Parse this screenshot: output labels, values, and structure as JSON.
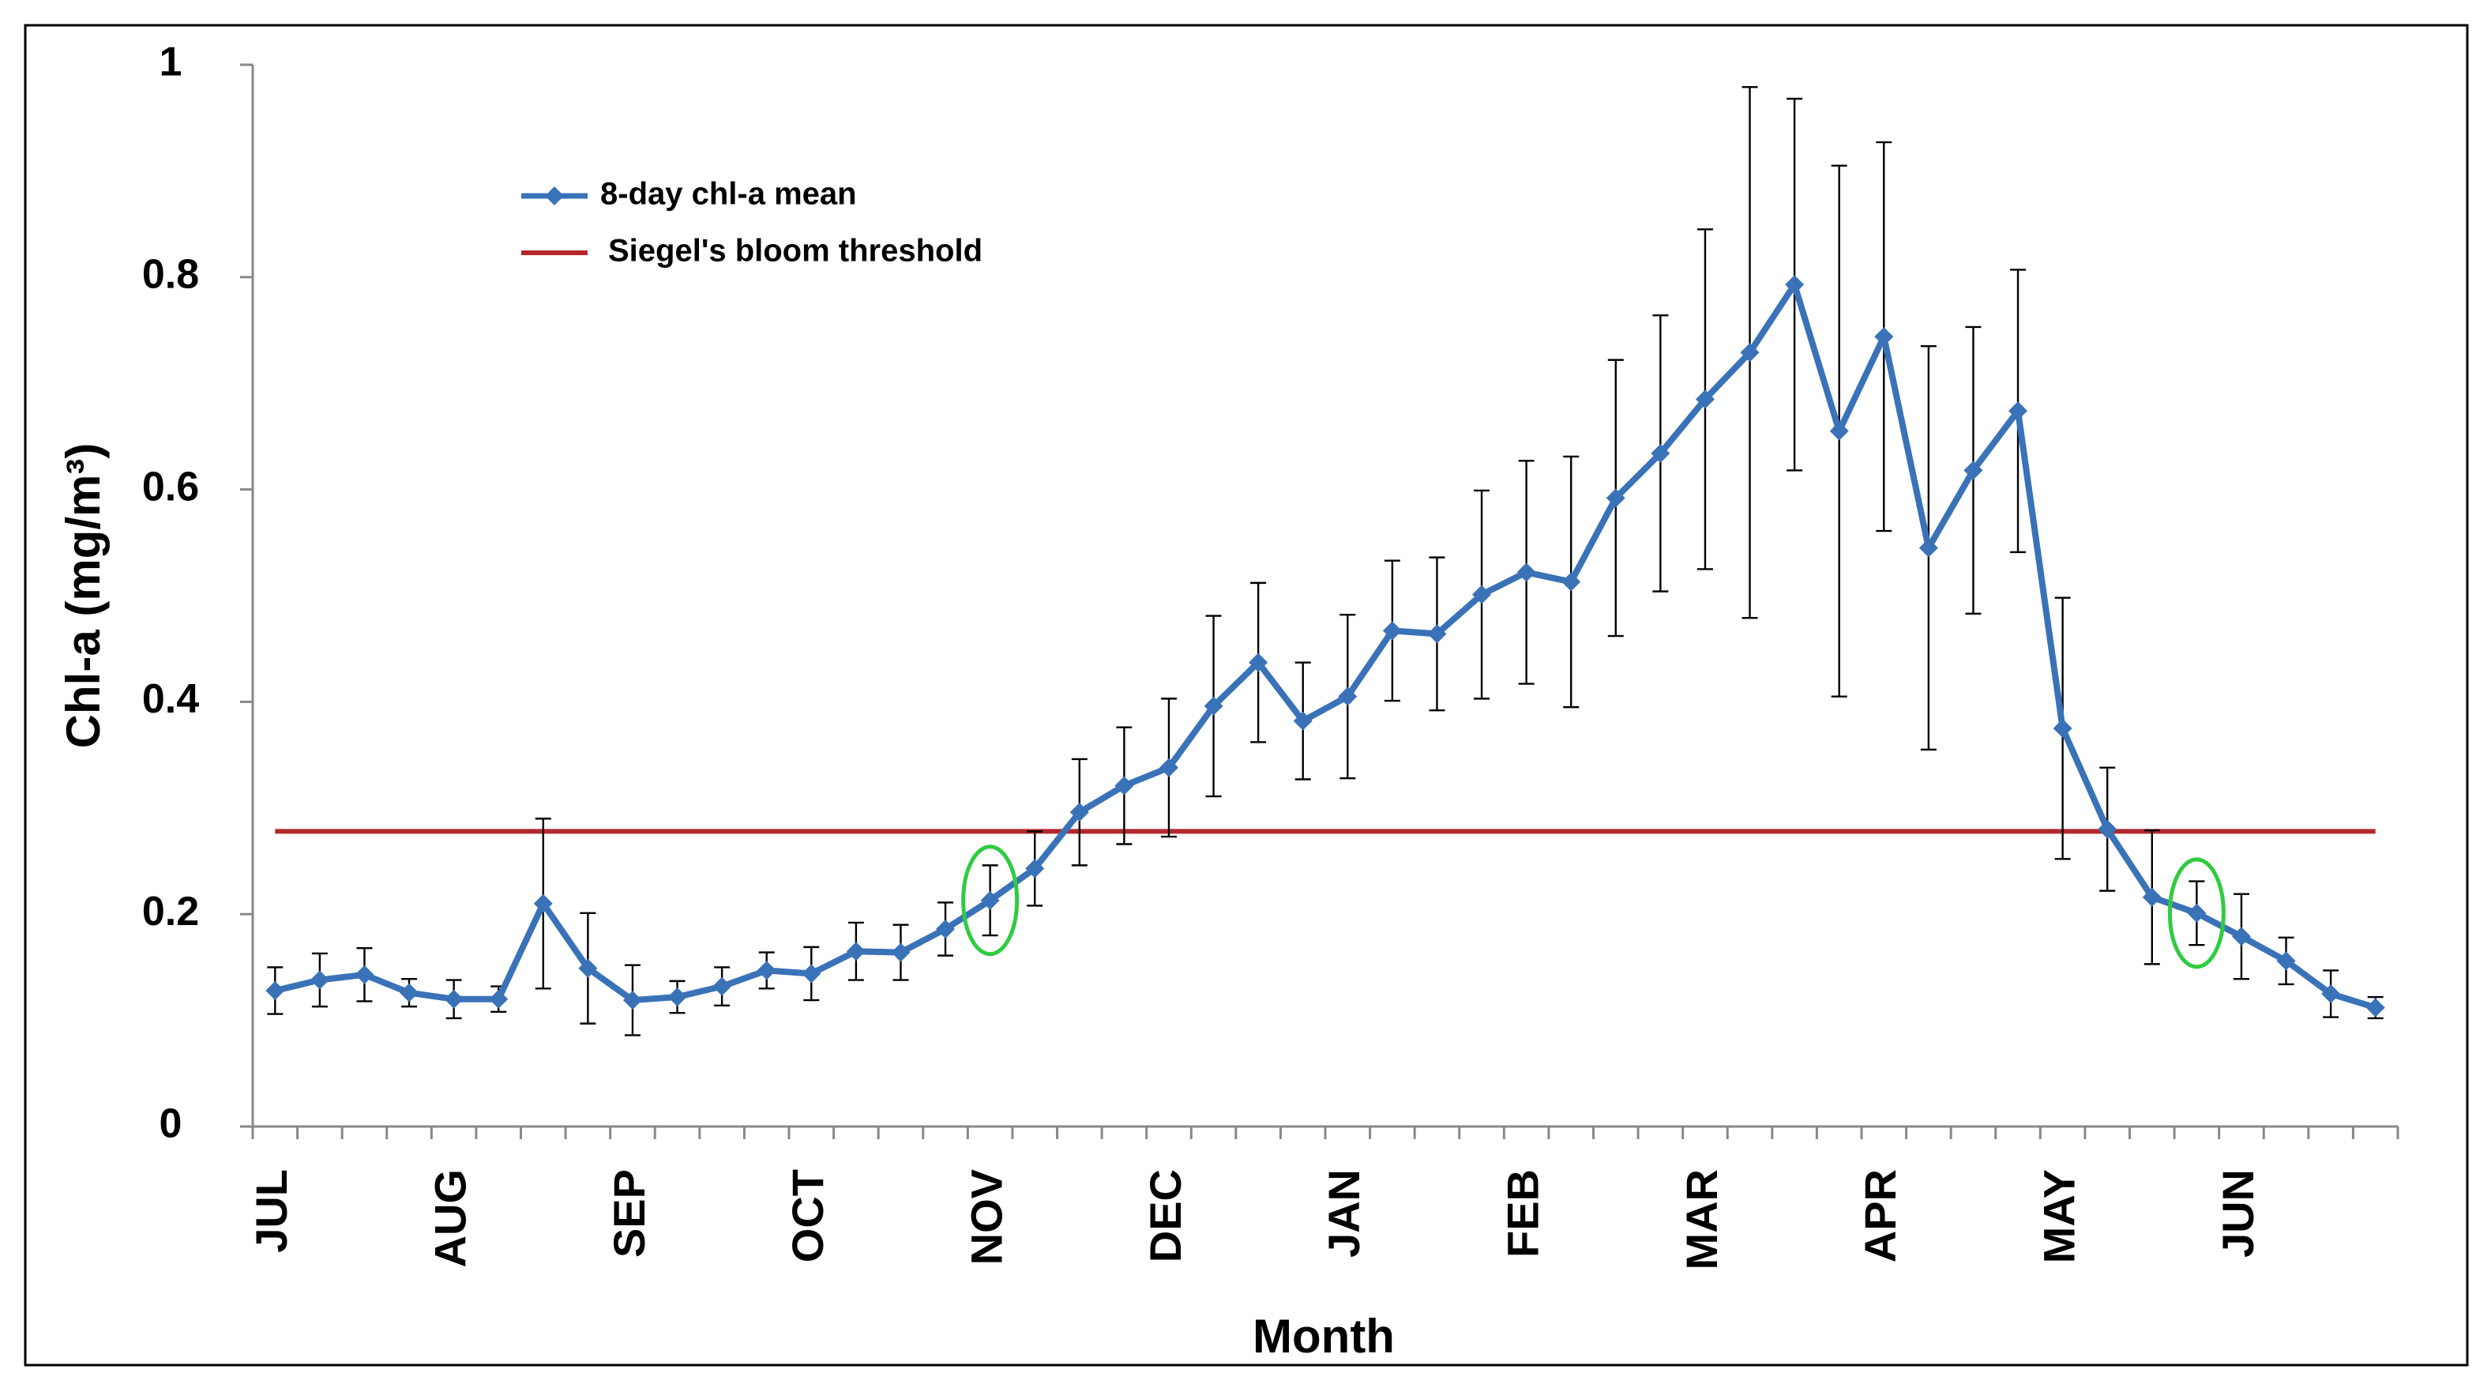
{
  "chart_data": {
    "type": "line",
    "x_label": "Month",
    "y_label": "Chl-a (mg/m³)",
    "categories": [
      "JUL",
      null,
      null,
      null,
      "AUG",
      null,
      null,
      null,
      "SEP",
      null,
      null,
      null,
      "OCT",
      null,
      null,
      null,
      "NOV",
      null,
      null,
      null,
      "DEC",
      null,
      null,
      null,
      "JAN",
      null,
      null,
      null,
      "FEB",
      null,
      null,
      null,
      "MAR",
      null,
      null,
      null,
      "APR",
      null,
      null,
      null,
      "MAY",
      null,
      null,
      null,
      "JUN",
      null,
      null,
      null
    ],
    "series": [
      {
        "name": "8-day chl-a mean",
        "color": "#3a72b8",
        "values": [
          0.128,
          0.138,
          0.143,
          0.126,
          0.12,
          0.12,
          0.21,
          0.149,
          0.119,
          0.122,
          0.132,
          0.147,
          0.144,
          0.165,
          0.164,
          0.186,
          0.213,
          0.243,
          0.296,
          0.321,
          0.338,
          0.396,
          0.437,
          0.382,
          0.405,
          0.467,
          0.464,
          0.501,
          0.522,
          0.513,
          0.592,
          0.634,
          0.685,
          0.729,
          0.793,
          0.655,
          0.744,
          0.545,
          0.618,
          0.674,
          0.375,
          0.28,
          0.216,
          0.201,
          0.179,
          0.156,
          0.125,
          0.112
        ],
        "errors": [
          0.022,
          0.025,
          0.025,
          0.013,
          0.018,
          0.012,
          0.08,
          0.052,
          0.033,
          0.015,
          0.018,
          0.017,
          0.025,
          0.027,
          0.026,
          0.025,
          0.033,
          0.035,
          0.05,
          0.055,
          0.065,
          0.085,
          0.075,
          0.055,
          0.077,
          0.066,
          0.072,
          0.098,
          0.105,
          0.118,
          0.13,
          0.13,
          0.16,
          0.25,
          0.175,
          0.25,
          0.183,
          0.19,
          0.135,
          0.133,
          0.123,
          0.058,
          0.063,
          0.03,
          0.04,
          0.022,
          0.022,
          0.01
        ]
      }
    ],
    "threshold": {
      "name": "Siegel's bloom threshold",
      "color": "#b3282d",
      "value": 0.278
    },
    "highlighted_points": [
      16,
      43
    ],
    "ylim": [
      0,
      1
    ],
    "yticks": [
      0,
      0.2,
      0.4,
      0.6,
      0.8,
      1
    ],
    "legend": "upper left"
  }
}
